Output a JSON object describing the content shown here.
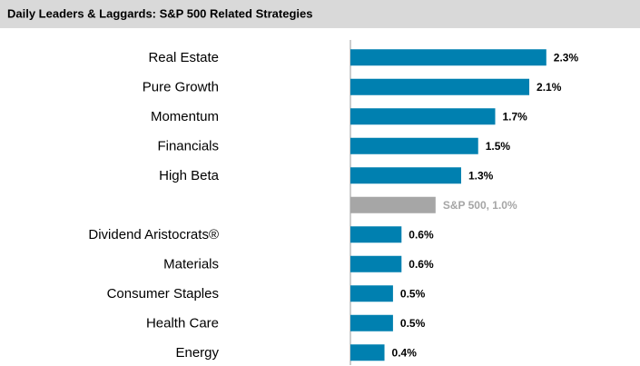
{
  "chart_data": {
    "type": "hbar",
    "title": "Daily Leaders & Laggards: S&P 500 Related Strategies",
    "categories": [
      "Real Estate",
      "Pure Growth",
      "Momentum",
      "Financials",
      "High Beta",
      null,
      "Dividend Aristocrats®",
      "Materials",
      "Consumer Staples",
      "Health Care",
      "Energy"
    ],
    "values": [
      2.3,
      2.1,
      1.7,
      1.5,
      1.3,
      1.0,
      0.6,
      0.6,
      0.5,
      0.5,
      0.4
    ],
    "value_labels": [
      "2.3%",
      "2.1%",
      "1.7%",
      "1.5%",
      "1.3%",
      "S&P 500, 1.0%",
      "0.6%",
      "0.6%",
      "0.5%",
      "0.5%",
      "0.4%"
    ],
    "colors": [
      "#0080b0",
      "#0080b0",
      "#0080b0",
      "#0080b0",
      "#0080b0",
      "#a6a6a6",
      "#0080b0",
      "#0080b0",
      "#0080b0",
      "#0080b0",
      "#0080b0"
    ],
    "value_label_colors": [
      "#000000",
      "#000000",
      "#000000",
      "#000000",
      "#000000",
      "#a6a6a6",
      "#000000",
      "#000000",
      "#000000",
      "#000000",
      "#000000"
    ],
    "xlim": [
      0,
      3.4
    ]
  }
}
